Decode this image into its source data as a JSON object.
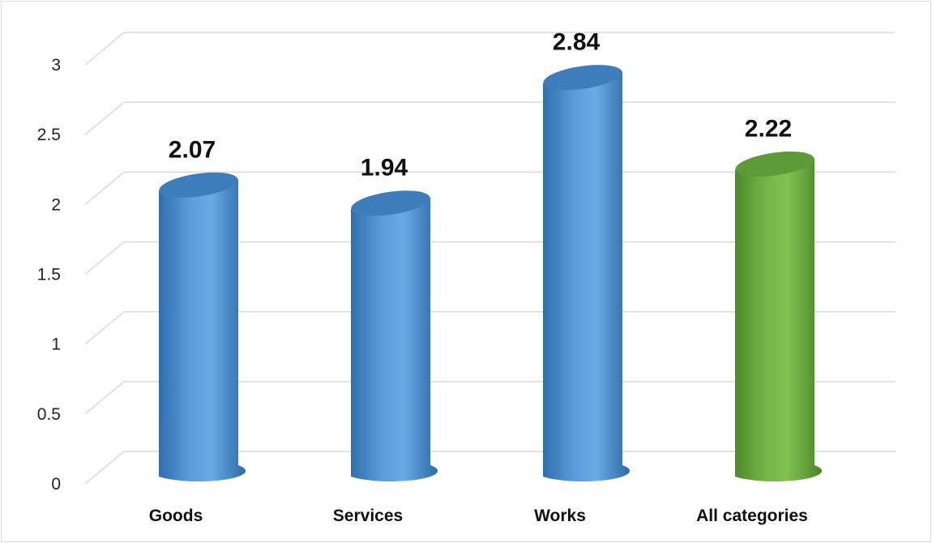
{
  "chart_data": {
    "type": "bar",
    "style": "3d-cylinder",
    "categories": [
      "Goods",
      "Services",
      "Works",
      "All categories"
    ],
    "values": [
      2.07,
      1.94,
      2.84,
      2.22
    ],
    "value_labels": [
      "2.07",
      "1.94",
      "2.84",
      "2.22"
    ],
    "ylim": [
      0,
      3
    ],
    "yticks": [
      "0",
      "0.5",
      "1",
      "1.5",
      "2",
      "2.5",
      "3"
    ],
    "grid": true,
    "legend": "none",
    "colors": {
      "default_bar": "#5b9bd5",
      "total_bar": "#70ad47"
    },
    "highlight_category": "All categories"
  }
}
